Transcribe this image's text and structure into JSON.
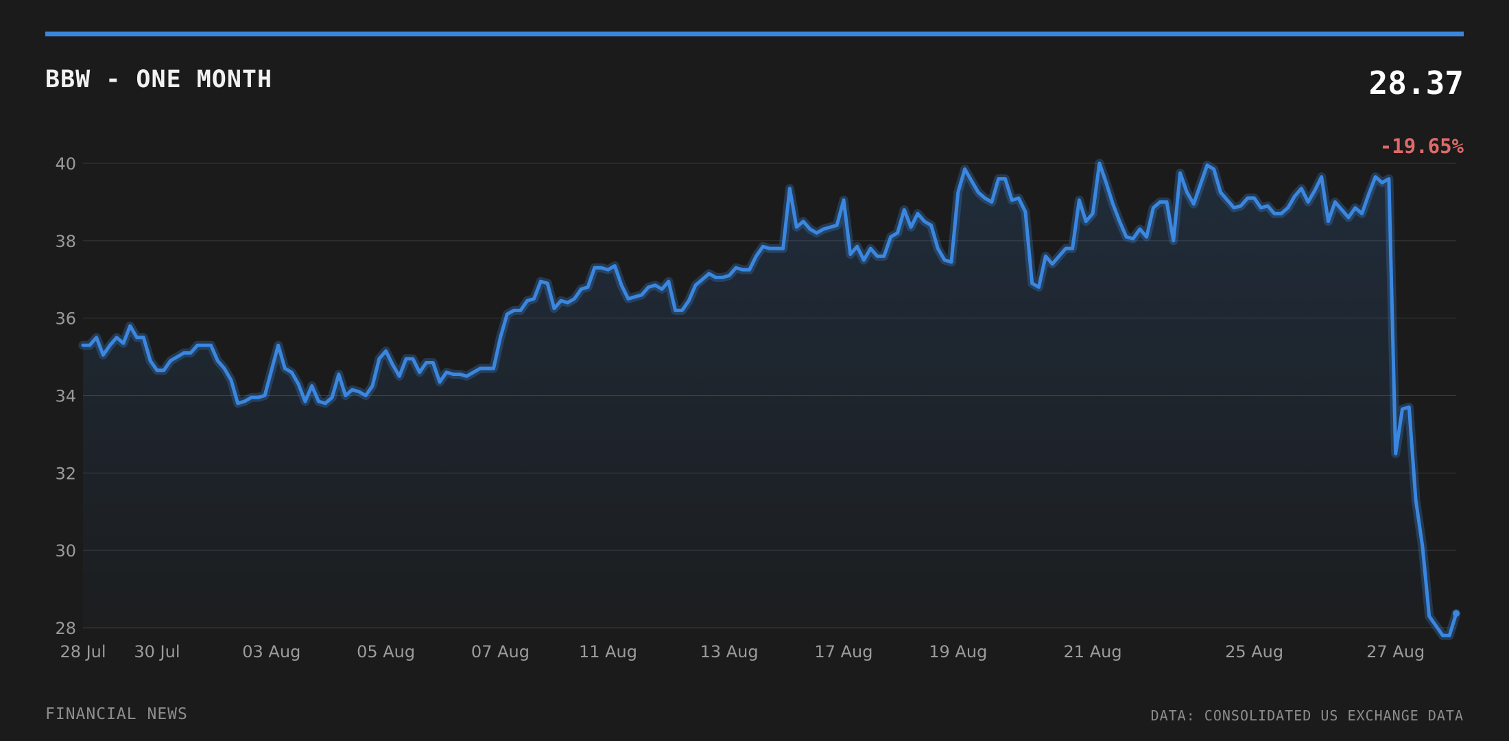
{
  "header": {
    "title": "BBW - ONE MONTH",
    "price": "28.37",
    "change": "-19.65%"
  },
  "footer": {
    "source_left": "FINANCIAL NEWS",
    "source_right": "DATA: CONSOLIDATED US EXCHANGE DATA"
  },
  "colors": {
    "background": "#1b1b1b",
    "accent": "#3b87e0",
    "negative": "#e06a6a",
    "grid": "#3a3a3a"
  },
  "chart_data": {
    "type": "area",
    "title": "BBW - ONE MONTH",
    "xlabel": "",
    "ylabel": "",
    "ylim": [
      28,
      40
    ],
    "yticks": [
      28,
      30,
      32,
      34,
      36,
      38,
      40
    ],
    "grid": true,
    "legend": "none",
    "x_ticks": [
      {
        "index": 0,
        "label": "28 Jul"
      },
      {
        "index": 11,
        "label": "30 Jul"
      },
      {
        "index": 28,
        "label": "03 Aug"
      },
      {
        "index": 45,
        "label": "05 Aug"
      },
      {
        "index": 62,
        "label": "07 Aug"
      },
      {
        "index": 78,
        "label": "11 Aug"
      },
      {
        "index": 96,
        "label": "13 Aug"
      },
      {
        "index": 113,
        "label": "17 Aug"
      },
      {
        "index": 130,
        "label": "19 Aug"
      },
      {
        "index": 150,
        "label": "21 Aug"
      },
      {
        "index": 174,
        "label": "25 Aug"
      },
      {
        "index": 195,
        "label": "27 Aug"
      }
    ],
    "series": [
      {
        "values": [
          35.3,
          35.3,
          35.5,
          35.05,
          35.3,
          35.5,
          35.35,
          35.8,
          35.5,
          35.5,
          34.9,
          34.65,
          34.65,
          34.9,
          35.0,
          35.1,
          35.1,
          35.3,
          35.3,
          35.3,
          34.9,
          34.7,
          34.4,
          33.8,
          33.85,
          33.95,
          33.95,
          34.0,
          34.65,
          35.3,
          34.7,
          34.6,
          34.3,
          33.85,
          34.25,
          33.85,
          33.8,
          33.95,
          34.55,
          34.0,
          34.15,
          34.1,
          34.0,
          34.25,
          34.95,
          35.15,
          34.8,
          34.5,
          34.95,
          34.95,
          34.6,
          34.85,
          34.85,
          34.35,
          34.6,
          34.55,
          34.55,
          34.5,
          34.6,
          34.7,
          34.7,
          34.7,
          35.5,
          36.1,
          36.2,
          36.2,
          36.45,
          36.5,
          36.95,
          36.9,
          36.25,
          36.45,
          36.4,
          36.5,
          36.75,
          36.8,
          37.3,
          37.3,
          37.25,
          37.35,
          36.85,
          36.5,
          36.55,
          36.6,
          36.8,
          36.85,
          36.75,
          36.95,
          36.2,
          36.2,
          36.45,
          36.85,
          37.0,
          37.15,
          37.05,
          37.05,
          37.1,
          37.3,
          37.25,
          37.25,
          37.6,
          37.85,
          37.8,
          37.8,
          37.8,
          39.35,
          38.35,
          38.5,
          38.3,
          38.2,
          38.3,
          38.35,
          38.4,
          39.05,
          37.65,
          37.85,
          37.5,
          37.8,
          37.6,
          37.6,
          38.1,
          38.2,
          38.8,
          38.35,
          38.7,
          38.5,
          38.4,
          37.8,
          37.5,
          37.45,
          39.25,
          39.85,
          39.55,
          39.25,
          39.1,
          39.0,
          39.6,
          39.6,
          39.05,
          39.1,
          38.75,
          36.9,
          36.8,
          37.6,
          37.4,
          37.6,
          37.8,
          37.8,
          39.05,
          38.5,
          38.7,
          40.0,
          39.5,
          38.95,
          38.5,
          38.1,
          38.05,
          38.3,
          38.1,
          38.85,
          39.0,
          39.0,
          38.0,
          39.75,
          39.25,
          38.95,
          39.45,
          39.95,
          39.85,
          39.25,
          39.05,
          38.85,
          38.9,
          39.1,
          39.1,
          38.85,
          38.9,
          38.7,
          38.7,
          38.85,
          39.15,
          39.35,
          39.0,
          39.3,
          39.65,
          38.5,
          39.0,
          38.8,
          38.6,
          38.85,
          38.7,
          39.2,
          39.65,
          39.5,
          39.6,
          32.5,
          33.65,
          33.7,
          31.3,
          30.1,
          28.3,
          28.05,
          27.8,
          27.8,
          28.37
        ]
      }
    ]
  }
}
